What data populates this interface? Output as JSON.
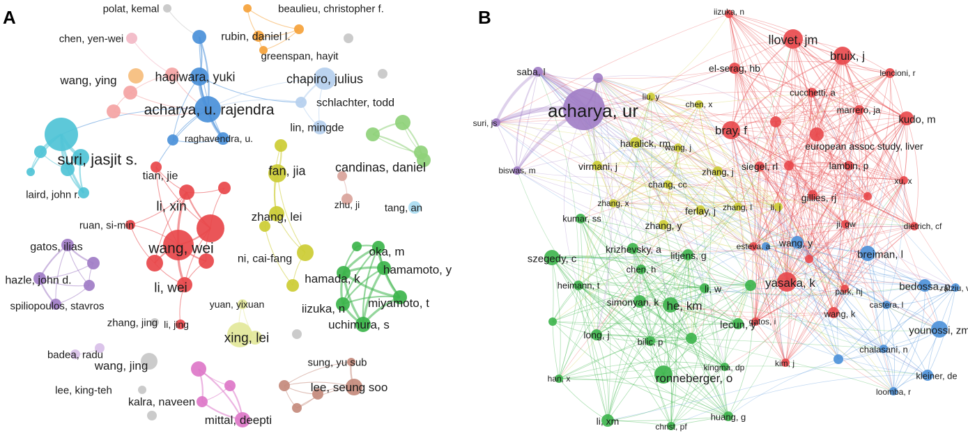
{
  "panels": [
    {
      "letter": "A",
      "nodes": [
        {
          "id": "polat",
          "label": "polat, kemal",
          "c": "gray"
        },
        {
          "id": "beaulieu",
          "label": "beaulieu, christopher f.",
          "c": "orange"
        },
        {
          "id": "chenyw",
          "label": "chen, yen-wei",
          "c": "pink"
        },
        {
          "id": "rubin",
          "label": "rubin, daniel l.",
          "c": "orange"
        },
        {
          "id": "greenspan",
          "label": "greenspan, hayit",
          "c": "orange"
        },
        {
          "id": "orange3",
          "label": "",
          "c": "orange"
        },
        {
          "id": "grayA1",
          "label": "",
          "c": "gray"
        },
        {
          "id": "wangying",
          "label": "wang, ying",
          "c": "peach"
        },
        {
          "id": "hagiwara",
          "label": "hagiwara, yuki",
          "c": "blue"
        },
        {
          "id": "blue1",
          "label": "",
          "c": "blue"
        },
        {
          "id": "chapiro",
          "label": "chapiro, julius",
          "c": "lightblue"
        },
        {
          "id": "grayA2",
          "label": "",
          "c": "gray"
        },
        {
          "id": "schlachter",
          "label": "schlachter, todd",
          "c": "lightblue"
        },
        {
          "id": "acharya",
          "label": "acharya, u. rajendra",
          "c": "blue"
        },
        {
          "id": "salmon1",
          "label": "",
          "c": "salmon"
        },
        {
          "id": "salmon2",
          "label": "",
          "c": "salmon"
        },
        {
          "id": "salmon3",
          "label": "",
          "c": "salmon"
        },
        {
          "id": "linmingde",
          "label": "lin, mingde",
          "c": "lightblue"
        },
        {
          "id": "raghavendra",
          "label": "raghavendra, u.",
          "c": "blue"
        },
        {
          "id": "blue2",
          "label": "",
          "c": "blue"
        },
        {
          "id": "suri",
          "label": "suri, jasjit s.",
          "c": "cyan"
        },
        {
          "id": "cyan1",
          "label": "",
          "c": "cyan"
        },
        {
          "id": "cyan2",
          "label": "",
          "c": "cyan"
        },
        {
          "id": "cyan3",
          "label": "",
          "c": "cyan"
        },
        {
          "id": "cyan4",
          "label": "",
          "c": "cyan"
        },
        {
          "id": "laird",
          "label": "laird, john r.",
          "c": "cyan"
        },
        {
          "id": "tianjie",
          "label": "tian, jie",
          "c": "red"
        },
        {
          "id": "lixin",
          "label": "li, xin",
          "c": "red"
        },
        {
          "id": "redbig",
          "label": "",
          "c": "red"
        },
        {
          "id": "red3",
          "label": "",
          "c": "red"
        },
        {
          "id": "ruan",
          "label": "ruan, si-min",
          "c": "red"
        },
        {
          "id": "wangwei",
          "label": "wang, wei",
          "c": "red"
        },
        {
          "id": "red4",
          "label": "",
          "c": "red"
        },
        {
          "id": "red5",
          "label": "",
          "c": "red"
        },
        {
          "id": "liwei",
          "label": "li, wei",
          "c": "red"
        },
        {
          "id": "lijing",
          "label": "li, jing",
          "c": "red"
        },
        {
          "id": "fanjia",
          "label": "fan, jia",
          "c": "olive"
        },
        {
          "id": "olive1",
          "label": "",
          "c": "olive"
        },
        {
          "id": "zhanglei",
          "label": "zhang, lei",
          "c": "olive"
        },
        {
          "id": "olive2",
          "label": "",
          "c": "olive"
        },
        {
          "id": "nicaifang",
          "label": "ni, cai-fang",
          "c": "olive"
        },
        {
          "id": "olive3",
          "label": "",
          "c": "olive"
        },
        {
          "id": "candinas",
          "label": "candinas, daniel",
          "c": "lightgreen"
        },
        {
          "id": "lg1",
          "label": "",
          "c": "lightgreen"
        },
        {
          "id": "lg2",
          "label": "",
          "c": "lightgreen"
        },
        {
          "id": "lg3",
          "label": "",
          "c": "lightgreen"
        },
        {
          "id": "zhuji",
          "label": "zhu, ji",
          "c": "rosybrown"
        },
        {
          "id": "rb1",
          "label": "",
          "c": "rosybrown"
        },
        {
          "id": "tangan",
          "label": "tang, an",
          "c": "skyblue"
        },
        {
          "id": "okam",
          "label": "oka, m",
          "c": "green"
        },
        {
          "id": "hamamoto",
          "label": "hamamoto, y",
          "c": "green"
        },
        {
          "id": "hamada",
          "label": "hamada, k",
          "c": "green"
        },
        {
          "id": "miyamoto",
          "label": "miyamoto, t",
          "c": "green"
        },
        {
          "id": "iizukaA",
          "label": "iizuka, n",
          "c": "green"
        },
        {
          "id": "uchimura",
          "label": "uchimura, s",
          "c": "green"
        },
        {
          "id": "green1",
          "label": "",
          "c": "green"
        },
        {
          "id": "gatos",
          "label": "gatos, ilias",
          "c": "purple"
        },
        {
          "id": "hazle",
          "label": "hazle, john d.",
          "c": "purple"
        },
        {
          "id": "spilio",
          "label": "spiliopoulos, stavros",
          "c": "purple"
        },
        {
          "id": "purple1",
          "label": "",
          "c": "purple"
        },
        {
          "id": "purple2",
          "label": "",
          "c": "purple"
        },
        {
          "id": "yuan",
          "label": "yuan, yixuan",
          "c": "paleyellow"
        },
        {
          "id": "xinglei",
          "label": "xing, lei",
          "c": "paleyellow"
        },
        {
          "id": "py1",
          "label": "",
          "c": "paleyellow"
        },
        {
          "id": "zhangjing",
          "label": "zhang, jing",
          "c": "gray"
        },
        {
          "id": "grayA3",
          "label": "",
          "c": "gray"
        },
        {
          "id": "badea",
          "label": "badea, radu",
          "c": "lilac"
        },
        {
          "id": "lilac1",
          "label": "",
          "c": "lilac"
        },
        {
          "id": "wangjing",
          "label": "wang, jing",
          "c": "gray"
        },
        {
          "id": "leekt",
          "label": "lee, king-teh",
          "c": "gray"
        },
        {
          "id": "grayA4",
          "label": "",
          "c": "gray"
        },
        {
          "id": "kalra",
          "label": "kalra, naveen",
          "c": "magenta"
        },
        {
          "id": "mittal",
          "label": "mittal, deepti",
          "c": "magenta"
        },
        {
          "id": "mag1",
          "label": "",
          "c": "magenta"
        },
        {
          "id": "mag2",
          "label": "",
          "c": "magenta"
        },
        {
          "id": "sung",
          "label": "sung, yu sub",
          "c": "brown"
        },
        {
          "id": "leess",
          "label": "lee, seung soo",
          "c": "brown"
        },
        {
          "id": "br1",
          "label": "",
          "c": "brown"
        },
        {
          "id": "br2",
          "label": "",
          "c": "brown"
        },
        {
          "id": "br3",
          "label": "",
          "c": "brown"
        }
      ]
    },
    {
      "letter": "B",
      "nodes": [
        {
          "id": "iizukaB",
          "label": "iizuka, n",
          "c": "red"
        },
        {
          "id": "llovet",
          "label": "llovet, jm",
          "c": "red"
        },
        {
          "id": "bruix",
          "label": "bruix, j",
          "c": "red"
        },
        {
          "id": "elserag",
          "label": "el-serag, hb",
          "c": "red"
        },
        {
          "id": "lencioni",
          "label": "lencioni, r",
          "c": "red"
        },
        {
          "id": "cucchetti",
          "label": "cucchetti, a",
          "c": "red"
        },
        {
          "id": "marrero",
          "label": "marrero, ja",
          "c": "red"
        },
        {
          "id": "kudo",
          "label": "kudo, m",
          "c": "red"
        },
        {
          "id": "bray",
          "label": "bray, f",
          "c": "red"
        },
        {
          "id": "easl",
          "label": "european assoc study, liver",
          "c": "red"
        },
        {
          "id": "siegel",
          "label": "siegel, rl",
          "c": "red"
        },
        {
          "id": "lambin",
          "label": "lambin, p",
          "c": "red"
        },
        {
          "id": "gillies",
          "label": "gillies, rj",
          "c": "red"
        },
        {
          "id": "xux",
          "label": "xu, x",
          "c": "red"
        },
        {
          "id": "jigw",
          "label": "ji, gw",
          "c": "red"
        },
        {
          "id": "dietrich",
          "label": "dietrich, cf",
          "c": "red"
        },
        {
          "id": "yasaka",
          "label": "yasaka, k",
          "c": "red"
        },
        {
          "id": "parkhj",
          "label": "park, hj",
          "c": "red"
        },
        {
          "id": "wangk",
          "label": "wang, k",
          "c": "red"
        },
        {
          "id": "gatosI",
          "label": "gatos, i",
          "c": "red"
        },
        {
          "id": "kimj",
          "label": "kim, j",
          "c": "red"
        },
        {
          "id": "esteva",
          "label": "esteva, a",
          "c": "red"
        },
        {
          "id": "redB1",
          "label": "",
          "c": "red"
        },
        {
          "id": "redB2",
          "label": "",
          "c": "red"
        },
        {
          "id": "redB3",
          "label": "",
          "c": "red"
        },
        {
          "id": "redB4",
          "label": "",
          "c": "red"
        },
        {
          "id": "saba",
          "label": "saba, l",
          "c": "purple"
        },
        {
          "id": "acharyaB",
          "label": "acharya, ur",
          "c": "purple"
        },
        {
          "id": "surijs",
          "label": "suri, js",
          "c": "purple"
        },
        {
          "id": "biswas",
          "label": "biswas, m",
          "c": "purple"
        },
        {
          "id": "purpleB1",
          "label": "",
          "c": "purple"
        },
        {
          "id": "liuy",
          "label": "liu, y",
          "c": "olive"
        },
        {
          "id": "chenx",
          "label": "chen, x",
          "c": "olive"
        },
        {
          "id": "haralick",
          "label": "haralick, rm",
          "c": "olive"
        },
        {
          "id": "wangj",
          "label": "wang, j",
          "c": "olive"
        },
        {
          "id": "virmani",
          "label": "virmani, j",
          "c": "olive"
        },
        {
          "id": "zhangj",
          "label": "zhang, j",
          "c": "olive"
        },
        {
          "id": "changcc",
          "label": "chang, cc",
          "c": "olive"
        },
        {
          "id": "zhangx",
          "label": "zhang, x",
          "c": "olive"
        },
        {
          "id": "ferlay",
          "label": "ferlay, j",
          "c": "olive"
        },
        {
          "id": "zhangl",
          "label": "zhang, l",
          "c": "olive"
        },
        {
          "id": "lij",
          "label": "li, j",
          "c": "olive"
        },
        {
          "id": "zhangy",
          "label": "zhang, y",
          "c": "olive"
        },
        {
          "id": "kumar",
          "label": "kumar, ss",
          "c": "green"
        },
        {
          "id": "szegedy",
          "label": "szegedy, c",
          "c": "green"
        },
        {
          "id": "krizhevsky",
          "label": "krizhevsky, a",
          "c": "green"
        },
        {
          "id": "litjens",
          "label": "litjens, g",
          "c": "green"
        },
        {
          "id": "chenh",
          "label": "chen, h",
          "c": "green"
        },
        {
          "id": "heimann",
          "label": "heimann, t",
          "c": "green"
        },
        {
          "id": "liw",
          "label": "li, w",
          "c": "green"
        },
        {
          "id": "simonyan",
          "label": "simonyan, k",
          "c": "green"
        },
        {
          "id": "hekm",
          "label": "he, km",
          "c": "green"
        },
        {
          "id": "lecun",
          "label": "lecun, y",
          "c": "green"
        },
        {
          "id": "longj",
          "label": "long, j",
          "c": "green"
        },
        {
          "id": "bilic",
          "label": "bilic, p",
          "c": "green"
        },
        {
          "id": "kingma",
          "label": "kingma, dp",
          "c": "green"
        },
        {
          "id": "ronneberger",
          "label": "ronneberger, o",
          "c": "green"
        },
        {
          "id": "hanx",
          "label": "han, x",
          "c": "green"
        },
        {
          "id": "lixm",
          "label": "li, xm",
          "c": "green"
        },
        {
          "id": "christ",
          "label": "christ, pf",
          "c": "green"
        },
        {
          "id": "huangg",
          "label": "huang, g",
          "c": "green"
        },
        {
          "id": "greenB1",
          "label": "",
          "c": "green"
        },
        {
          "id": "greenB2",
          "label": "",
          "c": "green"
        },
        {
          "id": "greenB3",
          "label": "",
          "c": "green"
        },
        {
          "id": "wangy",
          "label": "wang, y",
          "c": "blue"
        },
        {
          "id": "breiman",
          "label": "breiman, l",
          "c": "blue"
        },
        {
          "id": "bedossa",
          "label": "bedossa, p",
          "c": "blue"
        },
        {
          "id": "ratziu",
          "label": "ratziu, v",
          "c": "blue"
        },
        {
          "id": "castera",
          "label": "castera, l",
          "c": "blue"
        },
        {
          "id": "younossi",
          "label": "younossi, zm",
          "c": "blue"
        },
        {
          "id": "chalasani",
          "label": "chalasani, n",
          "c": "blue"
        },
        {
          "id": "kleiner",
          "label": "kleiner, de",
          "c": "blue"
        },
        {
          "id": "loomba",
          "label": "loomba, r",
          "c": "blue"
        },
        {
          "id": "blueB1",
          "label": "",
          "c": "blue"
        },
        {
          "id": "blueB2",
          "label": "",
          "c": "blue"
        }
      ]
    }
  ],
  "colors": {
    "gray": "#c7c7c7",
    "orange": "#f5a23a",
    "pink": "#f2b8c6",
    "peach": "#f6bd7c",
    "blue": "#4a90d9",
    "lightblue": "#b5cfee",
    "salmon": "#f4a3a3",
    "cyan": "#4fc3d6",
    "red": "#e8474a",
    "olive": "#cccc33",
    "lightgreen": "#8fd17a",
    "rosybrown": "#d9a39a",
    "skyblue": "#a9dcf2",
    "green": "#3cb44b",
    "purple": "#a07cc5",
    "paleyellow": "#e3e89a",
    "lilac": "#d8bfe8",
    "magenta": "#dd77c8",
    "brown": "#c48a7c"
  }
}
